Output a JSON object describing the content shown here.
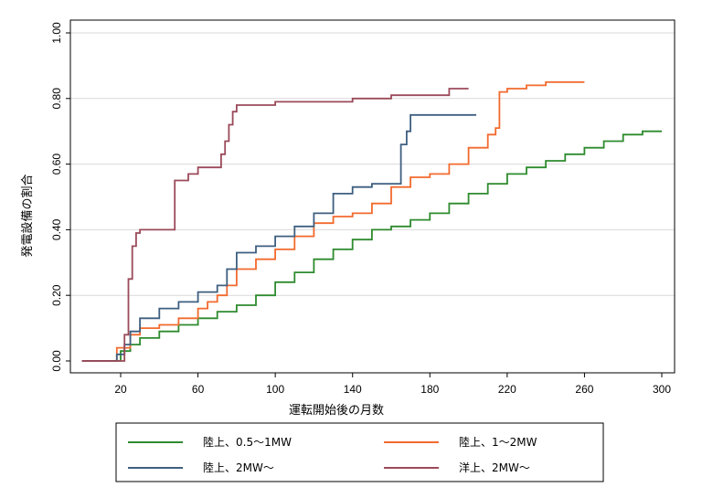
{
  "chart_data": {
    "type": "line",
    "xlabel": "運転開始後の月数",
    "ylabel": "発電設備の割合",
    "xlim": [
      0,
      305
    ],
    "ylim": [
      0,
      1.0
    ],
    "xticks": [
      20,
      60,
      100,
      140,
      180,
      220,
      260,
      300
    ],
    "yticks": [
      "0.00",
      "0.20",
      "0.40",
      "0.60",
      "0.80",
      "1.00"
    ],
    "grid": true,
    "legend_position": "bottom",
    "series": [
      {
        "name": "陸上、0.5〜1MW",
        "color": "#2e8b2e",
        "x": [
          0,
          15,
          20,
          25,
          30,
          40,
          50,
          60,
          70,
          80,
          90,
          100,
          110,
          120,
          130,
          140,
          150,
          160,
          170,
          180,
          190,
          200,
          210,
          220,
          230,
          240,
          250,
          260,
          270,
          280,
          290,
          300
        ],
        "y": [
          0.0,
          0.0,
          0.03,
          0.05,
          0.07,
          0.09,
          0.11,
          0.13,
          0.15,
          0.17,
          0.2,
          0.24,
          0.27,
          0.31,
          0.34,
          0.37,
          0.4,
          0.41,
          0.43,
          0.45,
          0.48,
          0.51,
          0.54,
          0.57,
          0.59,
          0.61,
          0.63,
          0.65,
          0.67,
          0.69,
          0.7,
          0.7
        ]
      },
      {
        "name": "陸上、1〜2MW",
        "color": "#f26a2e",
        "x": [
          0,
          15,
          18,
          22,
          25,
          30,
          40,
          50,
          60,
          65,
          70,
          75,
          80,
          90,
          100,
          110,
          120,
          130,
          140,
          150,
          160,
          170,
          180,
          190,
          200,
          210,
          214,
          216,
          220,
          230,
          240,
          250,
          260
        ],
        "y": [
          0.0,
          0.0,
          0.04,
          0.04,
          0.08,
          0.1,
          0.11,
          0.13,
          0.16,
          0.18,
          0.2,
          0.23,
          0.28,
          0.31,
          0.34,
          0.38,
          0.42,
          0.44,
          0.45,
          0.48,
          0.53,
          0.56,
          0.57,
          0.6,
          0.65,
          0.69,
          0.71,
          0.82,
          0.83,
          0.84,
          0.85,
          0.85,
          0.85
        ]
      },
      {
        "name": "陸上、2MW〜",
        "color": "#3e5f80",
        "x": [
          0,
          15,
          18,
          22,
          25,
          30,
          40,
          50,
          60,
          70,
          75,
          80,
          90,
          100,
          110,
          120,
          130,
          140,
          150,
          160,
          165,
          168,
          170,
          180,
          190,
          200,
          204
        ],
        "y": [
          0.0,
          0.0,
          0.02,
          0.05,
          0.09,
          0.13,
          0.16,
          0.18,
          0.21,
          0.23,
          0.28,
          0.33,
          0.35,
          0.38,
          0.41,
          0.45,
          0.51,
          0.53,
          0.54,
          0.54,
          0.66,
          0.7,
          0.75,
          0.75,
          0.75,
          0.75,
          0.75
        ]
      },
      {
        "name": "洋上、2MW〜",
        "color": "#9b4a5a",
        "x": [
          0,
          15,
          20,
          22,
          24,
          26,
          28,
          30,
          35,
          40,
          45,
          48,
          50,
          55,
          60,
          65,
          70,
          72,
          74,
          76,
          78,
          80,
          100,
          120,
          140,
          160,
          180,
          190,
          200
        ],
        "y": [
          0.0,
          0.0,
          0.0,
          0.08,
          0.25,
          0.35,
          0.39,
          0.4,
          0.4,
          0.4,
          0.4,
          0.55,
          0.55,
          0.57,
          0.59,
          0.59,
          0.59,
          0.63,
          0.67,
          0.72,
          0.76,
          0.78,
          0.79,
          0.79,
          0.8,
          0.81,
          0.81,
          0.83,
          0.83
        ]
      }
    ]
  }
}
